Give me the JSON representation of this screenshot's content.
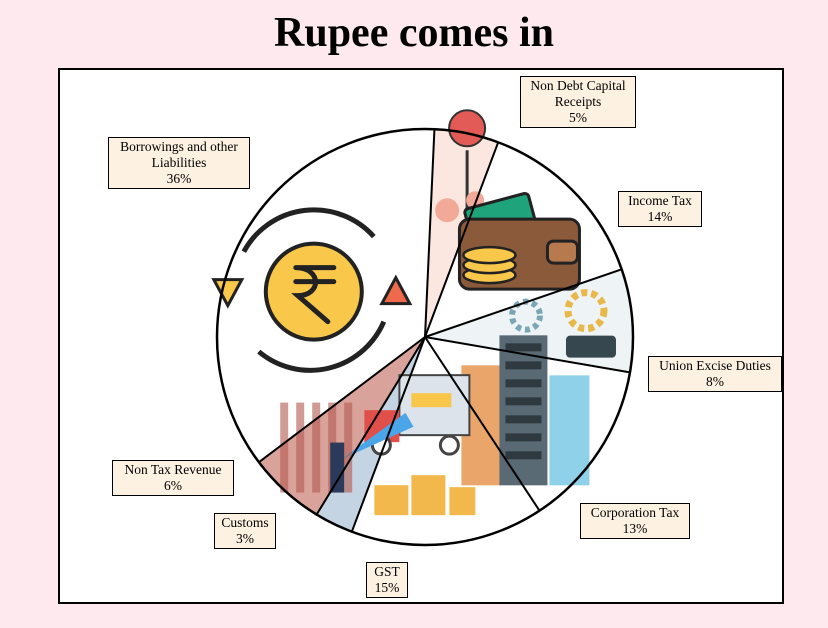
{
  "title": "Rupee comes in",
  "chart_data": {
    "type": "pie",
    "slices": [
      {
        "label": "Borrowings and other Liabilities",
        "value": 36,
        "value_label": "36%",
        "color": "#ffffff",
        "icon": "rupee-cycle-icon"
      },
      {
        "label": "Non Debt Capital Receipts",
        "value": 5,
        "value_label": "5%",
        "color": "#fbe7df",
        "icon": "bid-icon"
      },
      {
        "label": "Income Tax",
        "value": 14,
        "value_label": "14%",
        "color": "#ffffff",
        "icon": "wallet-icon"
      },
      {
        "label": "Union Excise Duties",
        "value": 8,
        "value_label": "8%",
        "color": "#eef3f5",
        "icon": "gears-icon"
      },
      {
        "label": "Corporation Tax",
        "value": 13,
        "value_label": "13%",
        "color": "#ffffff",
        "icon": "buildings-icon"
      },
      {
        "label": "GST",
        "value": 15,
        "value_label": "15%",
        "color": "#ffffff",
        "icon": "delivery-truck-icon"
      },
      {
        "label": "Customs",
        "value": 3,
        "value_label": "3%",
        "color": "#c5d4e2",
        "icon": "plane-icon"
      },
      {
        "label": "Non Tax Revenue",
        "value": 6,
        "value_label": "6%",
        "color": "#d9a39b",
        "icon": "curtain-icon"
      }
    ]
  }
}
